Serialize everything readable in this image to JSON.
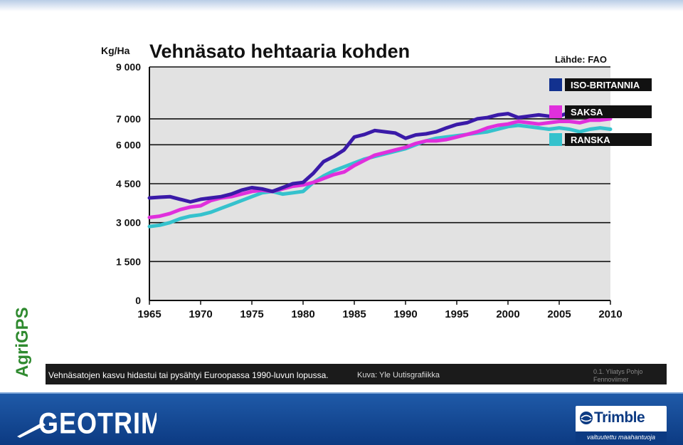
{
  "chart_data": {
    "type": "line",
    "title": "Vehnäsato hehtaaria kohden",
    "ylabel": "Kg/Ha",
    "source_label": "Lähde: FAO",
    "xlim": [
      1965,
      2010
    ],
    "ylim": [
      0,
      9000
    ],
    "x_ticks": [
      1965,
      1970,
      1975,
      1980,
      1985,
      1990,
      1995,
      2000,
      2005,
      2010
    ],
    "y_ticks": [
      0,
      1500,
      3000,
      4500,
      6000,
      7000,
      9000
    ],
    "y_tick_labels": [
      "0",
      "1 500",
      "3 000",
      "4 500",
      "6 000",
      "7 000",
      "9 000"
    ],
    "grid": true,
    "legend_position": "right",
    "x": [
      1965,
      1966,
      1967,
      1968,
      1969,
      1970,
      1971,
      1972,
      1973,
      1974,
      1975,
      1976,
      1977,
      1978,
      1979,
      1980,
      1981,
      1982,
      1983,
      1984,
      1985,
      1986,
      1987,
      1988,
      1989,
      1990,
      1991,
      1992,
      1993,
      1994,
      1995,
      1996,
      1997,
      1998,
      1999,
      2000,
      2001,
      2002,
      2003,
      2004,
      2005,
      2006,
      2007,
      2008,
      2009,
      2010
    ],
    "series": [
      {
        "name": "ISO-BRITANNIA",
        "color": "#3a1aa8",
        "values": [
          3950,
          3980,
          4000,
          3900,
          3800,
          3900,
          3950,
          4000,
          4100,
          4250,
          4350,
          4300,
          4200,
          4350,
          4500,
          4550,
          4900,
          5350,
          5550,
          5800,
          6300,
          6400,
          6550,
          6500,
          6450,
          6250,
          6380,
          6420,
          6500,
          6650,
          6780,
          6850,
          7000,
          7050,
          7150,
          7200,
          7050,
          7100,
          7150,
          7100,
          7100,
          7250,
          7100,
          7250,
          7150,
          7100
        ]
      },
      {
        "name": "SAKSA",
        "color": "#e02fdc",
        "values": [
          3200,
          3250,
          3350,
          3500,
          3600,
          3650,
          3850,
          3950,
          4000,
          4100,
          4200,
          4250,
          4200,
          4300,
          4400,
          4450,
          4550,
          4700,
          4850,
          4950,
          5200,
          5400,
          5600,
          5700,
          5800,
          5900,
          6050,
          6150,
          6150,
          6200,
          6300,
          6400,
          6500,
          6650,
          6750,
          6800,
          6900,
          6850,
          6800,
          6850,
          6900,
          6900,
          6850,
          6950,
          6950,
          7000
        ]
      },
      {
        "name": "RANSKA",
        "color": "#35c2cd",
        "values": [
          2850,
          2900,
          3000,
          3150,
          3250,
          3300,
          3400,
          3550,
          3700,
          3850,
          4000,
          4150,
          4200,
          4100,
          4150,
          4200,
          4550,
          4800,
          5000,
          5150,
          5300,
          5450,
          5550,
          5650,
          5750,
          5850,
          6000,
          6150,
          6250,
          6300,
          6350,
          6400,
          6450,
          6500,
          6600,
          6700,
          6750,
          6700,
          6650,
          6600,
          6650,
          6600,
          6500,
          6600,
          6650,
          6600
        ]
      }
    ]
  },
  "caption": {
    "text": "Vehnäsatojen kasvu hidastui tai pysähtyi Euroopassa 1990-luvun lopussa.",
    "credit": "Kuva: Yle Uutisgrafiikka",
    "side": "0.1.  Yliatys Pohjo Fennoviimer"
  },
  "side_brand": "AgriGPS",
  "footer": {
    "geotrim": "GEOTRIM",
    "trimble": "Trimble",
    "trimble_sub": "valtuutettu maahantuoja"
  },
  "colors": {
    "plot_bg": "#e2e2e2",
    "agrigps_green": "#2f8a2f",
    "footer_blue": "#0c3a82",
    "legend_label_bg": "#111111",
    "legend_uk_swatch": "#12318f",
    "legend_de_swatch": "#e02fdc",
    "legend_fr_swatch": "#35c2cd"
  }
}
